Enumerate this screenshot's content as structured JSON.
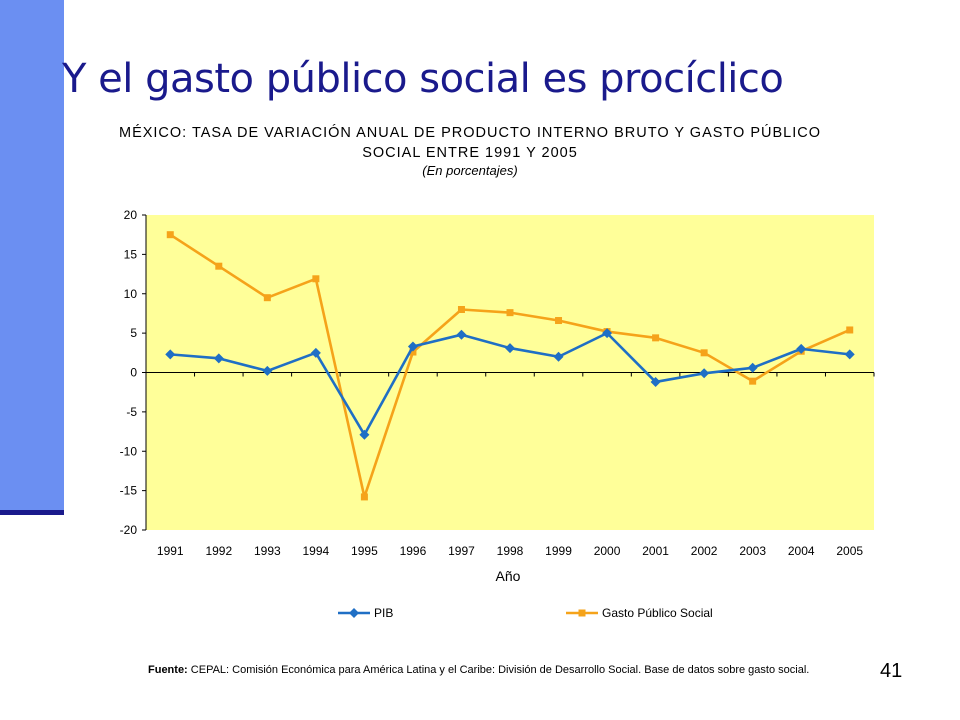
{
  "slide": {
    "title": "Y el gasto público social es procíclico",
    "page_number": "41"
  },
  "footer": {
    "source_label": "Fuente:",
    "source_text": " CEPAL: Comisión Económica para América Latina y el Caribe: División de Desarrollo Social. Base de datos sobre gasto social."
  },
  "colors": {
    "slide_bar": "#6b8ff2",
    "slide_rule": "#1a1a8c",
    "title_text": "#1a1a8c",
    "plot_background": "#ffff99",
    "pib": "#1f6fc5",
    "gasto": "#f5a31a"
  },
  "chart_data": {
    "type": "line",
    "title_line1": "MÉXICO: TASA DE VARIACIÓN ANUAL DE PRODUCTO INTERNO BRUTO Y GASTO PÚBLICO",
    "title_line2": "SOCIAL ENTRE 1991 Y 2005",
    "subtitle": "(En porcentajes)",
    "xlabel": "Año",
    "ylabel": "",
    "categories": [
      "1991",
      "1992",
      "1993",
      "1994",
      "1995",
      "1996",
      "1997",
      "1998",
      "1999",
      "2000",
      "2001",
      "2002",
      "2003",
      "2004",
      "2005"
    ],
    "ylim": [
      -20,
      20
    ],
    "yticks": [
      20,
      15,
      10,
      5,
      0,
      -5,
      -10,
      -15,
      -20
    ],
    "grid": false,
    "legend_position": "bottom",
    "series": [
      {
        "name": "PIB",
        "marker": "diamond",
        "color": "#1f6fc5",
        "values": [
          2.3,
          1.8,
          0.2,
          2.5,
          -7.9,
          3.3,
          4.8,
          3.1,
          2.0,
          5.0,
          -1.2,
          -0.1,
          0.6,
          3.0,
          2.3
        ]
      },
      {
        "name": "Gasto Público Social",
        "marker": "square",
        "color": "#f5a31a",
        "values": [
          17.5,
          13.5,
          9.5,
          11.9,
          -15.8,
          2.6,
          8.0,
          7.6,
          6.6,
          5.2,
          4.4,
          2.5,
          -1.1,
          2.7,
          5.4
        ]
      }
    ]
  }
}
